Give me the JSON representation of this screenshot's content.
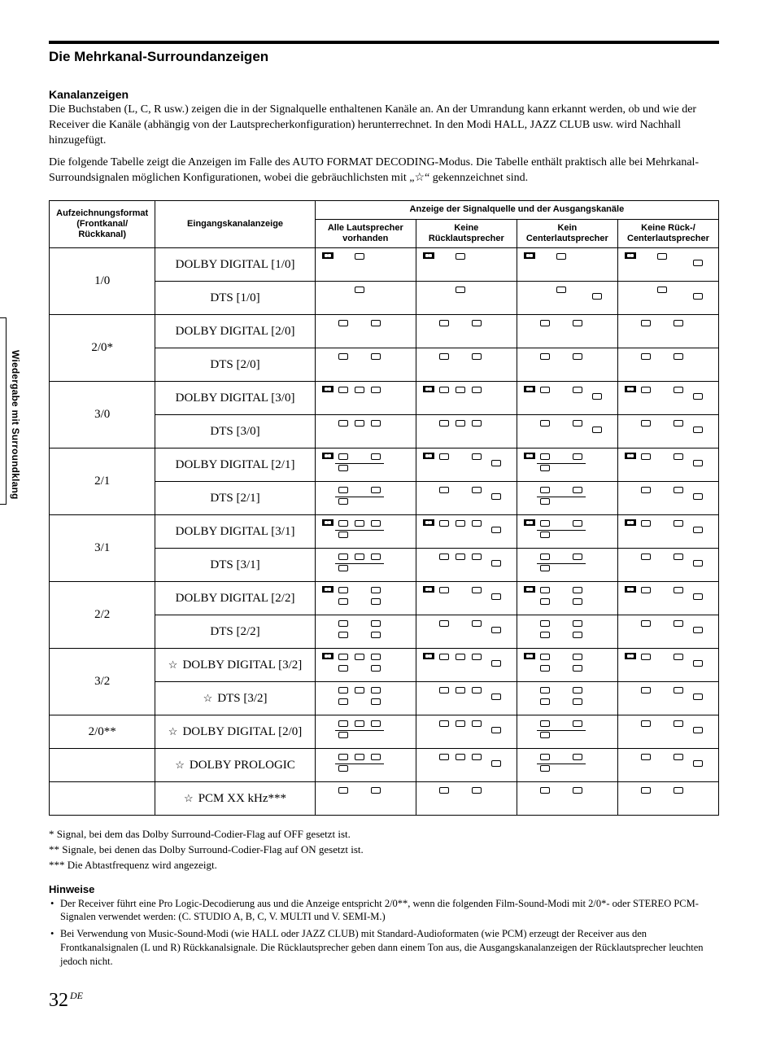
{
  "sideTab": "Wiedergabe mit Surroundklang",
  "sectionTitle": "Die Mehrkanal-Surroundanzeigen",
  "subTitle": "Kanalanzeigen",
  "para1": "Die Buchstaben (L, C, R usw.) zeigen die in der Signalquelle enthaltenen Kanäle an. An der Umrandung kann erkannt werden, ob und wie der Receiver die Kanäle (abhängig von der Lautsprecherkonfiguration) herunterrechnet. In den Modi HALL, JAZZ CLUB usw. wird Nachhall hinzugefügt.",
  "para2": "Die folgende Tabelle zeigt die Anzeigen im Falle des AUTO FORMAT DECODING-Modus. Die Tabelle enthält praktisch alle bei Mehrkanal-Surroundsignalen möglichen Konfigurationen, wobei die gebräuchlichsten mit „☆“ gekennzeichnet sind.",
  "table": {
    "headerTop": "Anzeige der Signalquelle und der Ausgangskanäle",
    "h_format": "Aufzeichnungsformat (Frontkanal/ Rückkanal)",
    "h_input": "Eingangskanalanzeige",
    "h_all": "Alle Lautsprecher vorhanden",
    "h_noRear": "Keine Rücklautsprecher",
    "h_noCenter": "Kein Centerlautsprecher",
    "h_noRearCenter": "Keine Rück-/ Centerlautsprecher",
    "rows": [
      {
        "fmt": "1/0",
        "fmtRowspan": 2,
        "input": "DOLBY DIGITAL [1/0]",
        "star": false,
        "ind": [
          {
            "d": true,
            "C": true
          },
          {
            "d": true,
            "C": true
          },
          {
            "d": true,
            "C": true
          },
          {
            "d": true,
            "C": true,
            "SW": true
          }
        ]
      },
      {
        "input": "DTS [1/0]",
        "star": false,
        "ind": [
          {
            "C": true
          },
          {
            "C": true
          },
          {
            "C": true,
            "SW": true
          },
          {
            "C": true,
            "SW": true
          }
        ]
      },
      {
        "fmt": "2/0*",
        "fmtRowspan": 2,
        "input": "DOLBY DIGITAL [2/0]",
        "star": false,
        "ind": [
          {
            "L": true,
            "R": true
          },
          {
            "L": true,
            "R": true
          },
          {
            "L": true,
            "R": true
          },
          {
            "L": true,
            "R": true
          }
        ]
      },
      {
        "input": "DTS [2/0]",
        "star": false,
        "ind": [
          {
            "L": true,
            "R": true
          },
          {
            "L": true,
            "R": true
          },
          {
            "L": true,
            "R": true
          },
          {
            "L": true,
            "R": true
          }
        ]
      },
      {
        "fmt": "3/0",
        "fmtRowspan": 2,
        "input": "DOLBY DIGITAL [3/0]",
        "star": false,
        "ind": [
          {
            "d": true,
            "L": true,
            "C": true,
            "R": true
          },
          {
            "d": true,
            "L": true,
            "C": true,
            "R": true
          },
          {
            "d": true,
            "L": true,
            "R": true,
            "SW": true
          },
          {
            "d": true,
            "L": true,
            "R": true,
            "SW": true
          }
        ]
      },
      {
        "input": "DTS [3/0]",
        "star": false,
        "ind": [
          {
            "L": true,
            "C": true,
            "R": true
          },
          {
            "L": true,
            "C": true,
            "R": true
          },
          {
            "L": true,
            "R": true,
            "SW": true
          },
          {
            "L": true,
            "R": true,
            "SW": true
          }
        ]
      },
      {
        "fmt": "2/1",
        "fmtRowspan": 2,
        "input": "DOLBY DIGITAL [2/1]",
        "star": false,
        "ind": [
          {
            "d": true,
            "L": true,
            "R": true,
            "SL": true,
            "bar": true
          },
          {
            "d": true,
            "L": true,
            "R": true,
            "SW": true
          },
          {
            "d": true,
            "L": true,
            "R": true,
            "SL": true,
            "bar": true
          },
          {
            "d": true,
            "L": true,
            "R": true,
            "SW": true
          }
        ]
      },
      {
        "input": "DTS [2/1]",
        "star": false,
        "ind": [
          {
            "L": true,
            "R": true,
            "SL": true,
            "bar": true
          },
          {
            "L": true,
            "R": true,
            "SW": true
          },
          {
            "L": true,
            "R": true,
            "SL": true,
            "bar": true
          },
          {
            "L": true,
            "R": true,
            "SW": true
          }
        ]
      },
      {
        "fmt": "3/1",
        "fmtRowspan": 2,
        "input": "DOLBY DIGITAL [3/1]",
        "star": false,
        "ind": [
          {
            "d": true,
            "L": true,
            "C": true,
            "R": true,
            "SL": true,
            "bar": true
          },
          {
            "d": true,
            "L": true,
            "C": true,
            "R": true,
            "SW": true
          },
          {
            "d": true,
            "L": true,
            "R": true,
            "SL": true,
            "bar": true
          },
          {
            "d": true,
            "L": true,
            "R": true,
            "SW": true
          }
        ]
      },
      {
        "input": "DTS [3/1]",
        "star": false,
        "ind": [
          {
            "L": true,
            "C": true,
            "R": true,
            "SL": true,
            "bar": true
          },
          {
            "L": true,
            "C": true,
            "R": true,
            "SW": true
          },
          {
            "L": true,
            "R": true,
            "SL": true,
            "bar": true
          },
          {
            "L": true,
            "R": true,
            "SW": true
          }
        ]
      },
      {
        "fmt": "2/2",
        "fmtRowspan": 2,
        "input": "DOLBY DIGITAL [2/2]",
        "star": false,
        "ind": [
          {
            "d": true,
            "L": true,
            "R": true,
            "SL": true,
            "SR": true
          },
          {
            "d": true,
            "L": true,
            "R": true,
            "SW": true
          },
          {
            "d": true,
            "L": true,
            "R": true,
            "SL": true,
            "SR": true
          },
          {
            "d": true,
            "L": true,
            "R": true,
            "SW": true
          }
        ]
      },
      {
        "input": "DTS [2/2]",
        "star": false,
        "ind": [
          {
            "L": true,
            "R": true,
            "SL": true,
            "SR": true
          },
          {
            "L": true,
            "R": true,
            "SW": true
          },
          {
            "L": true,
            "R": true,
            "SL": true,
            "SR": true
          },
          {
            "L": true,
            "R": true,
            "SW": true
          }
        ]
      },
      {
        "fmt": "3/2",
        "fmtRowspan": 2,
        "input": "DOLBY DIGITAL [3/2]",
        "star": true,
        "ind": [
          {
            "d": true,
            "L": true,
            "C": true,
            "R": true,
            "SL": true,
            "SR": true
          },
          {
            "d": true,
            "L": true,
            "C": true,
            "R": true,
            "SW": true
          },
          {
            "d": true,
            "L": true,
            "R": true,
            "SL": true,
            "SR": true
          },
          {
            "d": true,
            "L": true,
            "R": true,
            "SW": true
          }
        ]
      },
      {
        "input": "DTS [3/2]",
        "star": true,
        "ind": [
          {
            "L": true,
            "C": true,
            "R": true,
            "SL": true,
            "SR": true
          },
          {
            "L": true,
            "C": true,
            "R": true,
            "SW": true
          },
          {
            "L": true,
            "R": true,
            "SL": true,
            "SR": true
          },
          {
            "L": true,
            "R": true,
            "SW": true
          }
        ]
      },
      {
        "fmt": "2/0**",
        "fmtRowspan": 1,
        "input": "DOLBY DIGITAL [2/0]",
        "star": true,
        "ind": [
          {
            "L": true,
            "C": true,
            "R": true,
            "SL": true,
            "bar": true
          },
          {
            "L": true,
            "C": true,
            "R": true,
            "SW": true
          },
          {
            "L": true,
            "R": true,
            "SL": true,
            "bar": true
          },
          {
            "L": true,
            "R": true,
            "SW": true
          }
        ]
      },
      {
        "fmt": "",
        "fmtRowspan": 1,
        "input": "DOLBY PROLOGIC",
        "star": true,
        "ind": [
          {
            "L": true,
            "C": true,
            "R": true,
            "SL": true,
            "bar": true
          },
          {
            "L": true,
            "C": true,
            "R": true,
            "SW": true
          },
          {
            "L": true,
            "R": true,
            "SL": true,
            "bar": true
          },
          {
            "L": true,
            "R": true,
            "SW": true
          }
        ]
      },
      {
        "fmt": "",
        "fmtRowspan": 1,
        "input": "PCM XX kHz***",
        "star": true,
        "ind": [
          {
            "L": true,
            "R": true
          },
          {
            "L": true,
            "R": true
          },
          {
            "L": true,
            "R": true
          },
          {
            "L": true,
            "R": true
          }
        ]
      }
    ]
  },
  "footnotes": [
    "* Signal, bei dem das Dolby Surround-Codier-Flag auf OFF gesetzt ist.",
    "** Signale, bei denen das Dolby Surround-Codier-Flag auf ON gesetzt ist.",
    "*** Die Abtastfrequenz wird angezeigt."
  ],
  "notesTitle": "Hinweise",
  "notes": [
    "Der Receiver führt eine Pro Logic-Decodierung aus und die Anzeige entspricht 2/0**, wenn die folgenden Film-Sound-Modi mit 2/0*- oder STEREO PCM-Signalen verwendet werden: (C. STUDIO A, B, C,  V. MULTI und V. SEMI-M.)",
    "Bei Verwendung von Music-Sound-Modi (wie HALL oder JAZZ CLUB) mit Standard-Audioformaten (wie PCM) erzeugt der Receiver aus den Frontkanalsignalen (L und R) Rückkanalsignale. Die Rücklautsprecher geben dann einem Ton aus, die Ausgangskanalanzeigen der Rücklautsprecher leuchten jedoch nicht."
  ],
  "pageNumber": "32",
  "pageLang": "DE"
}
